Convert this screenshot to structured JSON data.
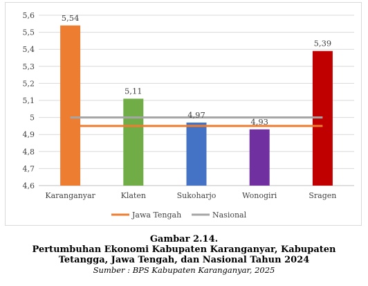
{
  "chart_data": {
    "type": "bar",
    "categories": [
      "Karanganyar",
      "Klaten",
      "Sukoharjo",
      "Wonogiri",
      "Sragen"
    ],
    "values": [
      5.54,
      5.11,
      4.97,
      4.93,
      5.39
    ],
    "value_labels": [
      "5,54",
      "5,11",
      "4,97",
      "4,93",
      "5,39"
    ],
    "bar_colors": [
      "#ed7d31",
      "#70ad47",
      "#4472c4",
      "#7030a0",
      "#c00000"
    ],
    "ylim": [
      4.6,
      5.6
    ],
    "yticks": [
      4.6,
      4.7,
      4.8,
      4.9,
      5,
      5.1,
      5.2,
      5.3,
      5.4,
      5.5,
      5.6
    ],
    "ytick_labels": [
      "4,6",
      "4,7",
      "4,8",
      "4,9",
      "5",
      "5,1",
      "5,2",
      "5,3",
      "5,4",
      "5,5",
      "5,6"
    ],
    "grid": true,
    "legend_position": "bottom",
    "reference_lines": [
      {
        "name": "Jawa Tengah",
        "value": 4.95,
        "color": "#ed7d31"
      },
      {
        "name": "Nasional",
        "value": 5.0,
        "color": "#a5a5a5"
      }
    ]
  },
  "caption": {
    "line1": "Gambar 2.14.",
    "line2": "Pertumbuhan Ekonomi Kabupaten Karanganyar, Kabupaten",
    "line3": "Tetangga, Jawa Tengah, dan Nasional Tahun 2024",
    "source": "Sumber : BPS Kabupaten Karanganyar, 2025"
  }
}
